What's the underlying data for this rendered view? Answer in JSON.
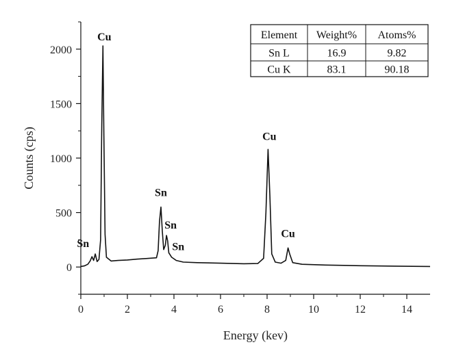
{
  "chart_data": {
    "type": "line",
    "xlabel": "Energy (kev)",
    "ylabel": "Counts (cps)",
    "xlim": [
      0,
      15
    ],
    "ylim": [
      -250,
      2250
    ],
    "x_ticks": [
      0,
      2,
      4,
      6,
      8,
      10,
      12,
      14
    ],
    "y_ticks": [
      0,
      500,
      1000,
      1500,
      2000
    ],
    "grid": false,
    "series": [
      {
        "points": [
          [
            0.0,
            5
          ],
          [
            0.15,
            10
          ],
          [
            0.3,
            25
          ],
          [
            0.4,
            55
          ],
          [
            0.48,
            95
          ],
          [
            0.55,
            60
          ],
          [
            0.62,
            120
          ],
          [
            0.7,
            50
          ],
          [
            0.78,
            70
          ],
          [
            0.85,
            250
          ],
          [
            0.9,
            1300
          ],
          [
            0.95,
            2030
          ],
          [
            0.99,
            1200
          ],
          [
            1.04,
            300
          ],
          [
            1.1,
            90
          ],
          [
            1.3,
            55
          ],
          [
            1.6,
            60
          ],
          [
            2.0,
            65
          ],
          [
            2.4,
            72
          ],
          [
            2.8,
            78
          ],
          [
            3.1,
            82
          ],
          [
            3.25,
            85
          ],
          [
            3.32,
            150
          ],
          [
            3.38,
            420
          ],
          [
            3.44,
            550
          ],
          [
            3.5,
            330
          ],
          [
            3.56,
            160
          ],
          [
            3.63,
            200
          ],
          [
            3.68,
            290
          ],
          [
            3.73,
            240
          ],
          [
            3.78,
            130
          ],
          [
            3.84,
            110
          ],
          [
            3.9,
            90
          ],
          [
            4.1,
            60
          ],
          [
            4.4,
            45
          ],
          [
            5.0,
            40
          ],
          [
            6.0,
            35
          ],
          [
            7.0,
            30
          ],
          [
            7.6,
            32
          ],
          [
            7.85,
            80
          ],
          [
            7.95,
            500
          ],
          [
            8.04,
            1080
          ],
          [
            8.12,
            650
          ],
          [
            8.2,
            120
          ],
          [
            8.35,
            45
          ],
          [
            8.6,
            35
          ],
          [
            8.8,
            60
          ],
          [
            8.9,
            175
          ],
          [
            8.97,
            120
          ],
          [
            9.1,
            40
          ],
          [
            9.5,
            25
          ],
          [
            10.5,
            18
          ],
          [
            12.0,
            12
          ],
          [
            13.5,
            8
          ],
          [
            15.0,
            5
          ]
        ],
        "color": "#111111"
      }
    ],
    "peak_labels": [
      {
        "text": "Cu",
        "x": 0.95,
        "y": 2030
      },
      {
        "text": "Sn",
        "x": 0.45,
        "y": 95
      },
      {
        "text": "Sn",
        "x": 3.44,
        "y": 550
      },
      {
        "text": "Sn",
        "x": 3.68,
        "y": 290
      },
      {
        "text": "Sn",
        "x": 3.95,
        "y": 130
      },
      {
        "text": "Cu",
        "x": 8.04,
        "y": 1080
      },
      {
        "text": "Cu",
        "x": 8.9,
        "y": 175
      }
    ],
    "table": {
      "headers": [
        "Element",
        "Weight%",
        "Atoms%"
      ],
      "rows": [
        [
          "Sn L",
          "16.9",
          "9.82"
        ],
        [
          "Cu K",
          "83.1",
          "90.18"
        ]
      ]
    }
  }
}
